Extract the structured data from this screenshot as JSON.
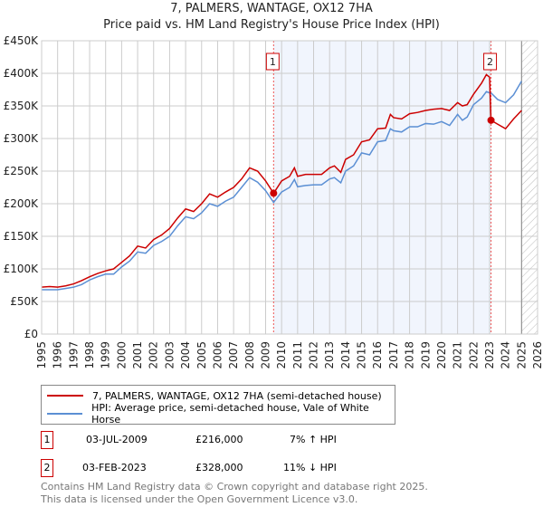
{
  "title": "7, PALMERS, WANTAGE, OX12 7HA",
  "subtitle": "Price paid vs. HM Land Registry's House Price Index (HPI)",
  "chart_data": {
    "type": "line",
    "xlim": [
      1995,
      2026
    ],
    "ylim": [
      0,
      450000
    ],
    "yticks": [
      "£0",
      "£50K",
      "£100K",
      "£150K",
      "£200K",
      "£250K",
      "£300K",
      "£350K",
      "£400K",
      "£450K"
    ],
    "xticks": [
      "1995",
      "1996",
      "1997",
      "1998",
      "1999",
      "2000",
      "2001",
      "2002",
      "2003",
      "2004",
      "2005",
      "2006",
      "2007",
      "2008",
      "2009",
      "2010",
      "2011",
      "2012",
      "2013",
      "2014",
      "2015",
      "2016",
      "2017",
      "2018",
      "2019",
      "2020",
      "2021",
      "2022",
      "2023",
      "2024",
      "2025",
      "2026"
    ],
    "shaded_range": [
      2009.5,
      2023.09
    ],
    "forecast_hatch_from": 2025.0,
    "series": [
      {
        "name": "7, PALMERS, WANTAGE, OX12 7HA (semi-detached house)",
        "color": "#cc0000",
        "x": [
          1995,
          1995.5,
          1996,
          1996.5,
          1997,
          1997.5,
          1998,
          1998.5,
          1999,
          1999.5,
          2000,
          2000.5,
          2001,
          2001.5,
          2002,
          2002.5,
          2003,
          2003.5,
          2004,
          2004.5,
          2005,
          2005.5,
          2006,
          2006.5,
          2007,
          2007.5,
          2008,
          2008.5,
          2009,
          2009.5,
          2010,
          2010.5,
          2010.8,
          2011,
          2011.5,
          2012,
          2012.5,
          2013,
          2013.3,
          2013.7,
          2014,
          2014.5,
          2015,
          2015.5,
          2016,
          2016.5,
          2016.8,
          2017,
          2017.5,
          2018,
          2018.5,
          2019,
          2019.5,
          2020,
          2020.5,
          2021,
          2021.3,
          2021.6,
          2022,
          2022.5,
          2022.8,
          2023.0,
          2023.09,
          2023.5,
          2024,
          2024.5,
          2025
        ],
        "y": [
          72000,
          73000,
          72000,
          74000,
          77000,
          82000,
          88000,
          93000,
          97000,
          100000,
          110000,
          120000,
          135000,
          132000,
          145000,
          152000,
          162000,
          178000,
          192000,
          188000,
          200000,
          215000,
          210000,
          218000,
          225000,
          238000,
          255000,
          250000,
          235000,
          216000,
          235000,
          242000,
          255000,
          242000,
          245000,
          245000,
          245000,
          255000,
          258000,
          248000,
          268000,
          275000,
          295000,
          298000,
          315000,
          316000,
          337000,
          332000,
          330000,
          338000,
          340000,
          343000,
          345000,
          346000,
          343000,
          355000,
          350000,
          352000,
          368000,
          385000,
          398000,
          394000,
          328000,
          322000,
          315000,
          330000,
          343000
        ]
      },
      {
        "name": "HPI: Average price, semi-detached house, Vale of White Horse",
        "color": "#5b8fd4",
        "x": [
          1995,
          1995.5,
          1996,
          1996.5,
          1997,
          1997.5,
          1998,
          1998.5,
          1999,
          1999.5,
          2000,
          2000.5,
          2001,
          2001.5,
          2002,
          2002.5,
          2003,
          2003.5,
          2004,
          2004.5,
          2005,
          2005.5,
          2006,
          2006.5,
          2007,
          2007.5,
          2008,
          2008.5,
          2009,
          2009.5,
          2010,
          2010.5,
          2010.8,
          2011,
          2011.5,
          2012,
          2012.5,
          2013,
          2013.3,
          2013.7,
          2014,
          2014.5,
          2015,
          2015.5,
          2016,
          2016.5,
          2016.8,
          2017,
          2017.5,
          2018,
          2018.5,
          2019,
          2019.5,
          2020,
          2020.5,
          2021,
          2021.3,
          2021.6,
          2022,
          2022.5,
          2022.8,
          2023.0,
          2023.09,
          2023.5,
          2024,
          2024.5,
          2025
        ],
        "y": [
          68000,
          68000,
          68000,
          70000,
          72000,
          76000,
          83000,
          88000,
          92000,
          92000,
          103000,
          112000,
          126000,
          124000,
          136000,
          142000,
          150000,
          166000,
          180000,
          177000,
          186000,
          200000,
          196000,
          204000,
          210000,
          225000,
          240000,
          233000,
          220000,
          202000,
          218000,
          225000,
          237000,
          226000,
          228000,
          229000,
          229000,
          238000,
          240000,
          232000,
          250000,
          258000,
          278000,
          275000,
          295000,
          297000,
          315000,
          312000,
          310000,
          318000,
          318000,
          323000,
          322000,
          326000,
          320000,
          337000,
          328000,
          333000,
          352000,
          362000,
          372000,
          370000,
          370000,
          360000,
          355000,
          367000,
          388000
        ]
      }
    ],
    "annotations": [
      {
        "label": "1",
        "x": 2009.5,
        "y": 216000
      },
      {
        "label": "2",
        "x": 2023.09,
        "y": 328000
      }
    ]
  },
  "legend": [
    "7, PALMERS, WANTAGE, OX12 7HA (semi-detached house)",
    "HPI: Average price, semi-detached house, Vale of White Horse"
  ],
  "transactions": [
    {
      "num": "1",
      "date": "03-JUL-2009",
      "price": "£216,000",
      "hpi": "7% ↑ HPI"
    },
    {
      "num": "2",
      "date": "03-FEB-2023",
      "price": "£328,000",
      "hpi": "11% ↓ HPI"
    }
  ],
  "footer": [
    "Contains HM Land Registry data © Crown copyright and database right 2025.",
    "This data is licensed under the Open Government Licence v3.0."
  ]
}
